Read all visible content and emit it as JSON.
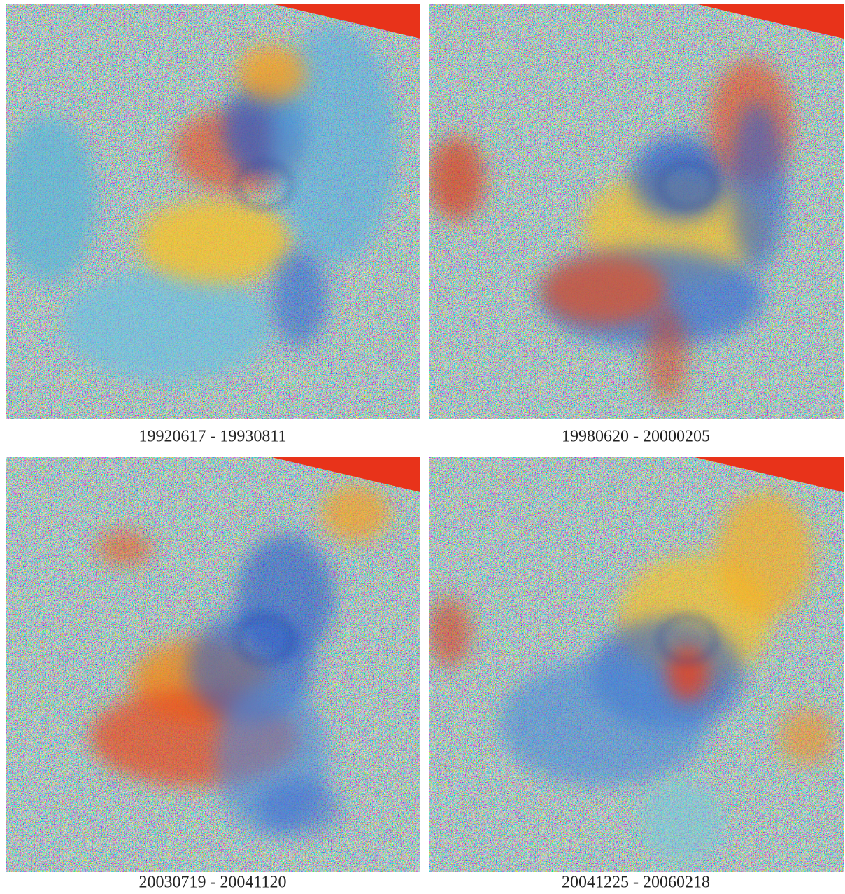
{
  "panels": [
    {
      "caption": "19920617 - 19930811"
    },
    {
      "caption": "19980620 - 20000205"
    },
    {
      "caption": "20030719 - 20041120"
    },
    {
      "caption": "20041225 - 20060218"
    }
  ]
}
